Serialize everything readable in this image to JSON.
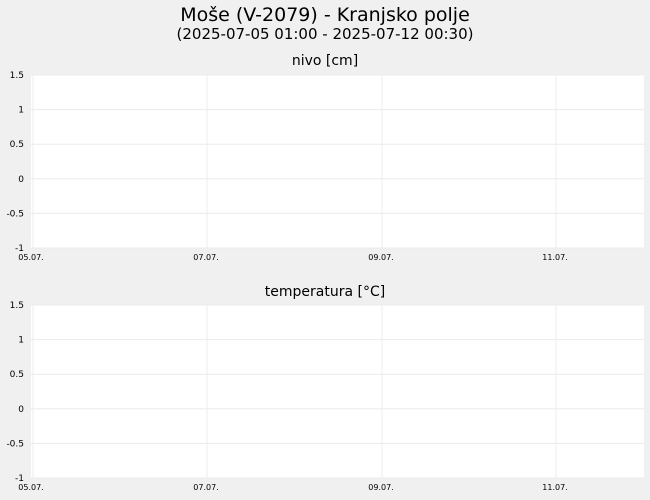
{
  "header": {
    "title": "Moše (V-2079) - Kranjsko polje",
    "subtitle": "(2025-07-05 01:00 - 2025-07-12 00:30)"
  },
  "colors": {
    "page_background": "#f0f0f0",
    "plot_background": "#ffffff",
    "grid": "#ececec"
  },
  "chart_data": [
    {
      "type": "line",
      "title": "nivo [cm]",
      "xlabel": "",
      "ylabel": "",
      "x_ticks": [
        "05.07.",
        "07.07.",
        "09.07.",
        "11.07."
      ],
      "y_ticks": [
        "1.5",
        "1",
        "0.5",
        "0",
        "-0.5",
        "-1"
      ],
      "ylim": [
        -1,
        1.5
      ],
      "xlim": [
        "2025-07-05 01:00",
        "2025-07-12 00:30"
      ],
      "grid": true,
      "series": []
    },
    {
      "type": "line",
      "title": "temperatura [°C]",
      "xlabel": "",
      "ylabel": "",
      "x_ticks": [
        "05.07.",
        "07.07.",
        "09.07.",
        "11.07."
      ],
      "y_ticks": [
        "1.5",
        "1",
        "0.5",
        "0",
        "-0.5",
        "-1"
      ],
      "ylim": [
        -1,
        1.5
      ],
      "xlim": [
        "2025-07-05 01:00",
        "2025-07-12 00:30"
      ],
      "grid": true,
      "series": []
    }
  ]
}
